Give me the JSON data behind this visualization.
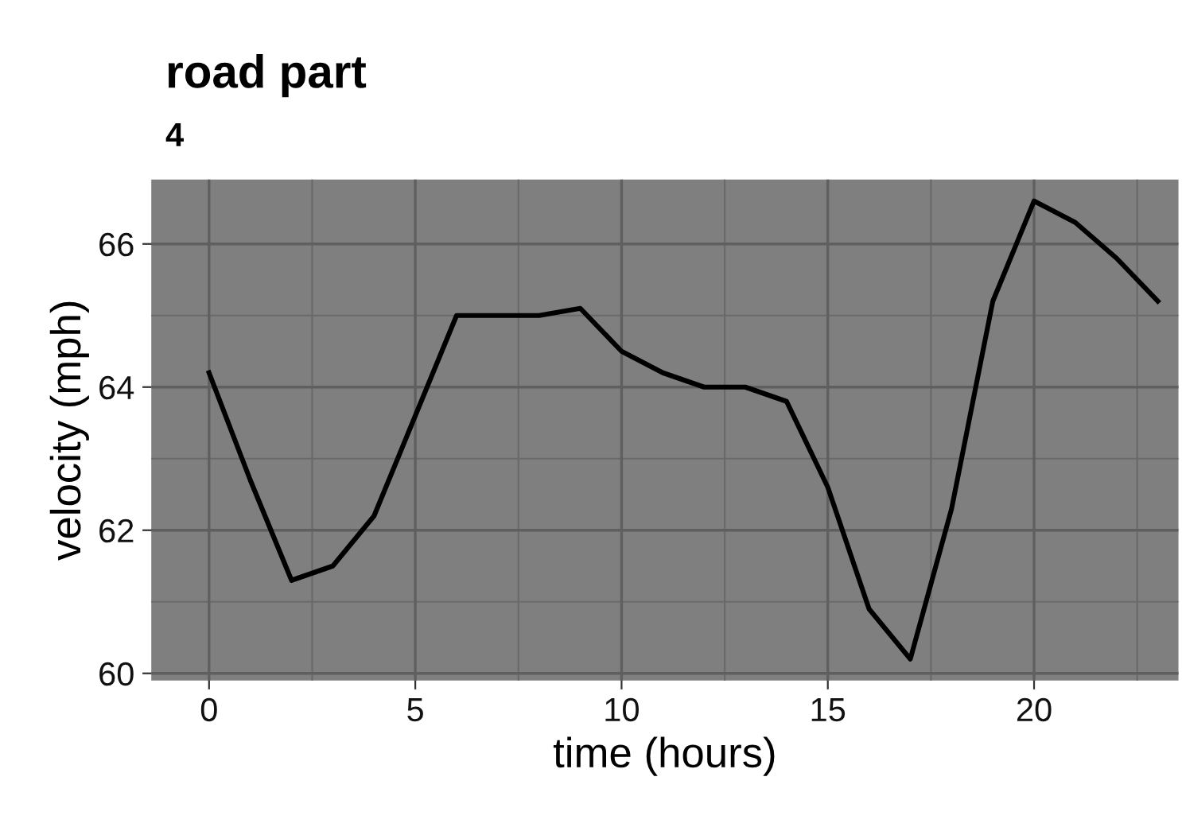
{
  "chart_data": {
    "type": "line",
    "title": "road part",
    "subtitle": "4",
    "xlabel": "time (hours)",
    "ylabel": "velocity (mph)",
    "x": [
      0,
      1,
      2,
      3,
      4,
      5,
      6,
      7,
      8,
      9,
      10,
      11,
      12,
      13,
      14,
      15,
      16,
      17,
      18,
      19,
      20,
      21,
      22,
      23
    ],
    "series": [
      {
        "color": "#000000",
        "values": [
          64.2,
          62.7,
          61.3,
          61.5,
          62.2,
          63.6,
          65.0,
          65.0,
          65.0,
          65.1,
          64.5,
          64.2,
          64.0,
          64.0,
          63.8,
          62.6,
          60.9,
          60.2,
          62.3,
          65.2,
          66.6,
          66.3,
          65.8,
          65.2
        ]
      }
    ],
    "xlim": [
      -1.4,
      23.5
    ],
    "ylim": [
      59.9,
      66.9
    ],
    "xticks": [
      0,
      5,
      10,
      15,
      20
    ],
    "yticks": [
      60,
      62,
      64,
      66
    ],
    "grid": true,
    "marker": "none",
    "line_style": "solid"
  }
}
